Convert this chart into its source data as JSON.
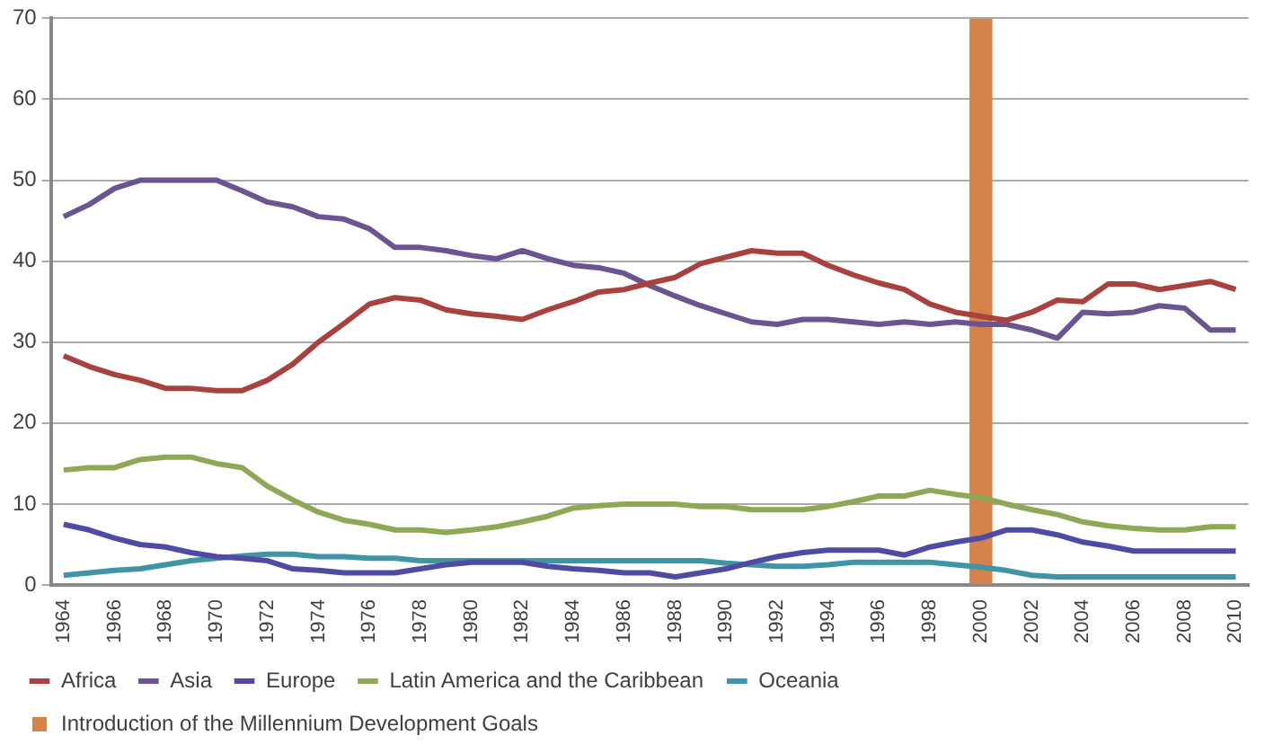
{
  "chart_data": {
    "type": "line",
    "categories": [
      "1964",
      null,
      "1966",
      null,
      "1968",
      null,
      "1970",
      null,
      "1972",
      null,
      "1974",
      null,
      "1976",
      null,
      "1978",
      null,
      "1980",
      null,
      "1982",
      null,
      "1984",
      null,
      "1986",
      null,
      "1988",
      null,
      "1990",
      null,
      "1992",
      null,
      "1994",
      null,
      "1996",
      null,
      "1998",
      null,
      "2000",
      null,
      "2002",
      null,
      "2004",
      null,
      "2006",
      null,
      "2008",
      null,
      "2010"
    ],
    "ylim": [
      0,
      70
    ],
    "yticks": [
      0,
      10,
      20,
      30,
      40,
      50,
      60,
      70
    ],
    "grid": "y",
    "legend": "bottom",
    "marker": "none",
    "line_style": "solid",
    "series": [
      {
        "name": "Introduction of the Millennium Development Goals",
        "type": "bar",
        "color": "#d5834a",
        "values": [
          null,
          null,
          null,
          null,
          null,
          null,
          null,
          null,
          null,
          null,
          null,
          null,
          null,
          null,
          null,
          null,
          null,
          null,
          null,
          null,
          null,
          null,
          null,
          null,
          null,
          null,
          null,
          null,
          null,
          null,
          null,
          null,
          null,
          null,
          null,
          null,
          70,
          null,
          null,
          null,
          null,
          null,
          null,
          null,
          null,
          null,
          null
        ]
      },
      {
        "name": "Africa",
        "color": "#a8423f",
        "values": [
          28.3,
          27,
          26,
          25.3,
          24.3,
          24.3,
          24,
          24,
          25.3,
          27.3,
          30,
          32.3,
          34.7,
          35.5,
          35.2,
          34,
          33.5,
          33.2,
          32.8,
          34,
          35,
          36.2,
          36.5,
          37.3,
          38,
          39.7,
          40.5,
          41.3,
          41,
          41,
          39.5,
          38.3,
          37.3,
          36.5,
          34.7,
          33.7,
          33.2,
          32.7,
          33.7,
          35.2,
          35,
          37.2,
          37.2,
          36.5,
          37,
          37.5,
          36.5
        ]
      },
      {
        "name": "Asia",
        "color": "#6b5590",
        "values": [
          45.5,
          47,
          49,
          50,
          50,
          50,
          50,
          48.7,
          47.3,
          46.7,
          45.5,
          45.2,
          44,
          41.7,
          41.7,
          41.3,
          40.7,
          40.3,
          41.3,
          40.3,
          39.5,
          39.2,
          38.5,
          37,
          35.7,
          34.5,
          33.5,
          32.5,
          32.2,
          32.8,
          32.8,
          32.5,
          32.2,
          32.5,
          32.2,
          32.5,
          32.2,
          32.2,
          31.5,
          30.5,
          33.7,
          33.5,
          33.7,
          34.5,
          34.2,
          31.5,
          31.5
        ]
      },
      {
        "name": "Europe",
        "color": "#4f4ba3",
        "values": [
          7.5,
          6.8,
          5.8,
          5,
          4.7,
          4,
          3.5,
          3.3,
          3,
          2,
          1.8,
          1.5,
          1.5,
          1.5,
          2,
          2.5,
          2.8,
          2.8,
          2.8,
          2.3,
          2,
          1.8,
          1.5,
          1.5,
          1,
          1.5,
          2,
          2.8,
          3.5,
          4,
          4.3,
          4.3,
          4.3,
          3.7,
          4.7,
          5.3,
          5.8,
          6.8,
          6.8,
          6.2,
          5.3,
          4.8,
          4.2,
          4.2,
          4.2,
          4.2,
          4.2
        ]
      },
      {
        "name": "Latin America and the Caribbean",
        "color": "#8ea856",
        "values": [
          14.2,
          14.5,
          14.5,
          15.5,
          15.8,
          15.8,
          15,
          14.5,
          12.2,
          10.5,
          9,
          8,
          7.5,
          6.8,
          6.8,
          6.5,
          6.8,
          7.2,
          7.8,
          8.5,
          9.5,
          9.8,
          10,
          10,
          10,
          9.7,
          9.7,
          9.3,
          9.3,
          9.3,
          9.7,
          10.3,
          11,
          11,
          11.7,
          11.2,
          10.8,
          10,
          9.3,
          8.7,
          7.8,
          7.3,
          7,
          6.8,
          6.8,
          7.2,
          7.2
        ]
      },
      {
        "name": "Oceania",
        "color": "#3f94a6",
        "values": [
          1.2,
          1.5,
          1.8,
          2,
          2.5,
          3,
          3.3,
          3.6,
          3.8,
          3.8,
          3.5,
          3.5,
          3.3,
          3.3,
          3,
          3,
          3,
          3,
          3,
          3,
          3,
          3,
          3,
          3,
          3,
          3,
          2.7,
          2.5,
          2.3,
          2.3,
          2.5,
          2.8,
          2.8,
          2.8,
          2.8,
          2.5,
          2.2,
          1.8,
          1.2,
          1,
          1,
          1,
          1,
          1,
          1,
          1,
          1
        ]
      }
    ]
  }
}
